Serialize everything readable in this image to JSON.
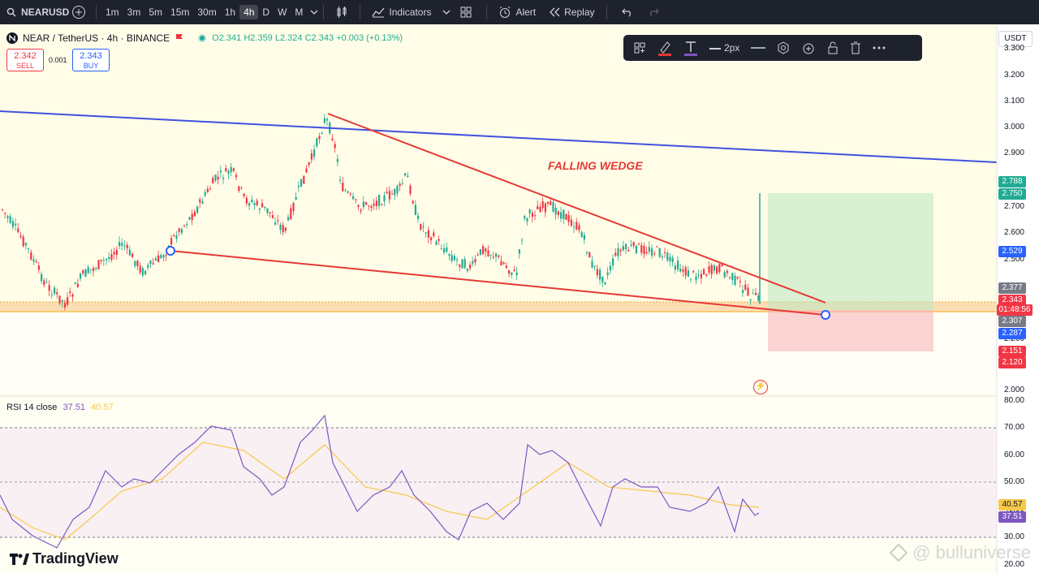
{
  "toolbar": {
    "symbol": "NEARUSD",
    "timeframes": [
      "1m",
      "3m",
      "5m",
      "15m",
      "30m",
      "1h",
      "4h",
      "D",
      "W",
      "M"
    ],
    "active_timeframe": "4h",
    "indicators_label": "Indicators",
    "alert_label": "Alert",
    "replay_label": "Replay"
  },
  "legend": {
    "title": "NEAR / TetherUS · 4h · BINANCE",
    "open": "O2.341",
    "high": "H2.359",
    "low": "L2.324",
    "close": "C2.343",
    "change": "+0.003 (+0.13%)"
  },
  "trade": {
    "sell_price": "2.342",
    "sell_label": "SELL",
    "spread": "0.001",
    "buy_price": "2.343",
    "buy_label": "BUY"
  },
  "drawing_toolbar": {
    "width_label": "2px"
  },
  "currency": "USDT",
  "annotation": "FALLING WEDGE",
  "price_axis": {
    "ticks": [
      "3.300",
      "3.200",
      "3.100",
      "3.000",
      "2.900",
      "2.800",
      "2.700",
      "2.600",
      "2.500",
      "2.400",
      "2.300",
      "2.200",
      "2.100",
      "2.000"
    ],
    "tags": [
      {
        "label": "2.788",
        "color": "#22ab94"
      },
      {
        "label": "2.750",
        "color": "#22ab94"
      },
      {
        "label": "2.529",
        "color": "#2962ff"
      },
      {
        "label": "2.377",
        "color": "#787b86"
      },
      {
        "label": "2.343",
        "color": "#f23645"
      },
      {
        "label": "01:48:56",
        "color": "#f23645"
      },
      {
        "label": "2.307",
        "color": "#787b86"
      },
      {
        "label": "2.287",
        "color": "#2962ff"
      },
      {
        "label": "2.151",
        "color": "#f23645"
      },
      {
        "label": "2.120",
        "color": "#f23645"
      }
    ]
  },
  "rsi": {
    "label": "RSI 14 close",
    "value": "37.51",
    "ma_value": "40.57",
    "ticks": [
      "80.00",
      "70.00",
      "60.00",
      "50.00",
      "40.00",
      "30.00",
      "20.00"
    ],
    "tags": [
      {
        "label": "40.57",
        "color": "#f7c948"
      },
      {
        "label": "37.51",
        "color": "#7e57c2"
      }
    ]
  },
  "branding": {
    "logo": "TradingView",
    "watermark": "@ bulluniverse"
  },
  "colors": {
    "bull": "#22ab94",
    "bear": "#f23645",
    "trendline_blue": "#3f51e0",
    "wedge_red": "#e53935",
    "rsi_line": "#7e57c2",
    "rsi_ma": "#f7c948"
  }
}
